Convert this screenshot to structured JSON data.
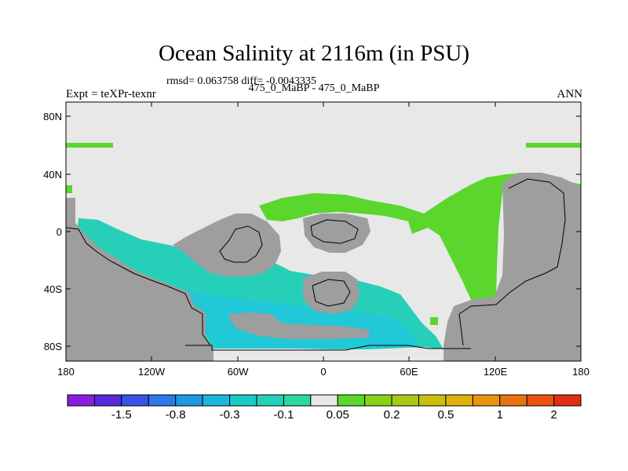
{
  "header": {
    "title": "Ocean Salinity at 2116m (in PSU)",
    "stats": "rmsd= 0.063758 diff= -0.0043335",
    "subtitle": "475_0_MaBP - 475_0_MaBP",
    "experiment": "Expt = teXPr-texnr",
    "season": "ANN"
  },
  "axes": {
    "x_ticks": [
      "180",
      "120W",
      "60W",
      "0",
      "60E",
      "120E",
      "180"
    ],
    "y_ticks": [
      "80N",
      "40N",
      "0",
      "40S",
      "80S"
    ]
  },
  "colors": {
    "land": "#9e9e9e",
    "neutral": "#e8e8e8",
    "positive_small": "#5ad62d",
    "negative_small": "#26d0b8",
    "negative_mid": "#20c8d8"
  },
  "colorbar": {
    "colors": [
      "#8a1ee0",
      "#5a2ae0",
      "#3a54e6",
      "#2a7ae8",
      "#1e98e0",
      "#1ab8dc",
      "#1cc8c8",
      "#26d0b8",
      "#2ad8a0",
      "#e8e8e8",
      "#5ad62d",
      "#88d21c",
      "#a8c816",
      "#c8c010",
      "#e0b00e",
      "#e89410",
      "#e87410",
      "#e85410",
      "#e02e14"
    ],
    "labels": [
      "-1.5",
      "-0.8",
      "-0.3",
      "-0.1",
      "0.05",
      "0.2",
      "0.5",
      "1",
      "2"
    ]
  }
}
